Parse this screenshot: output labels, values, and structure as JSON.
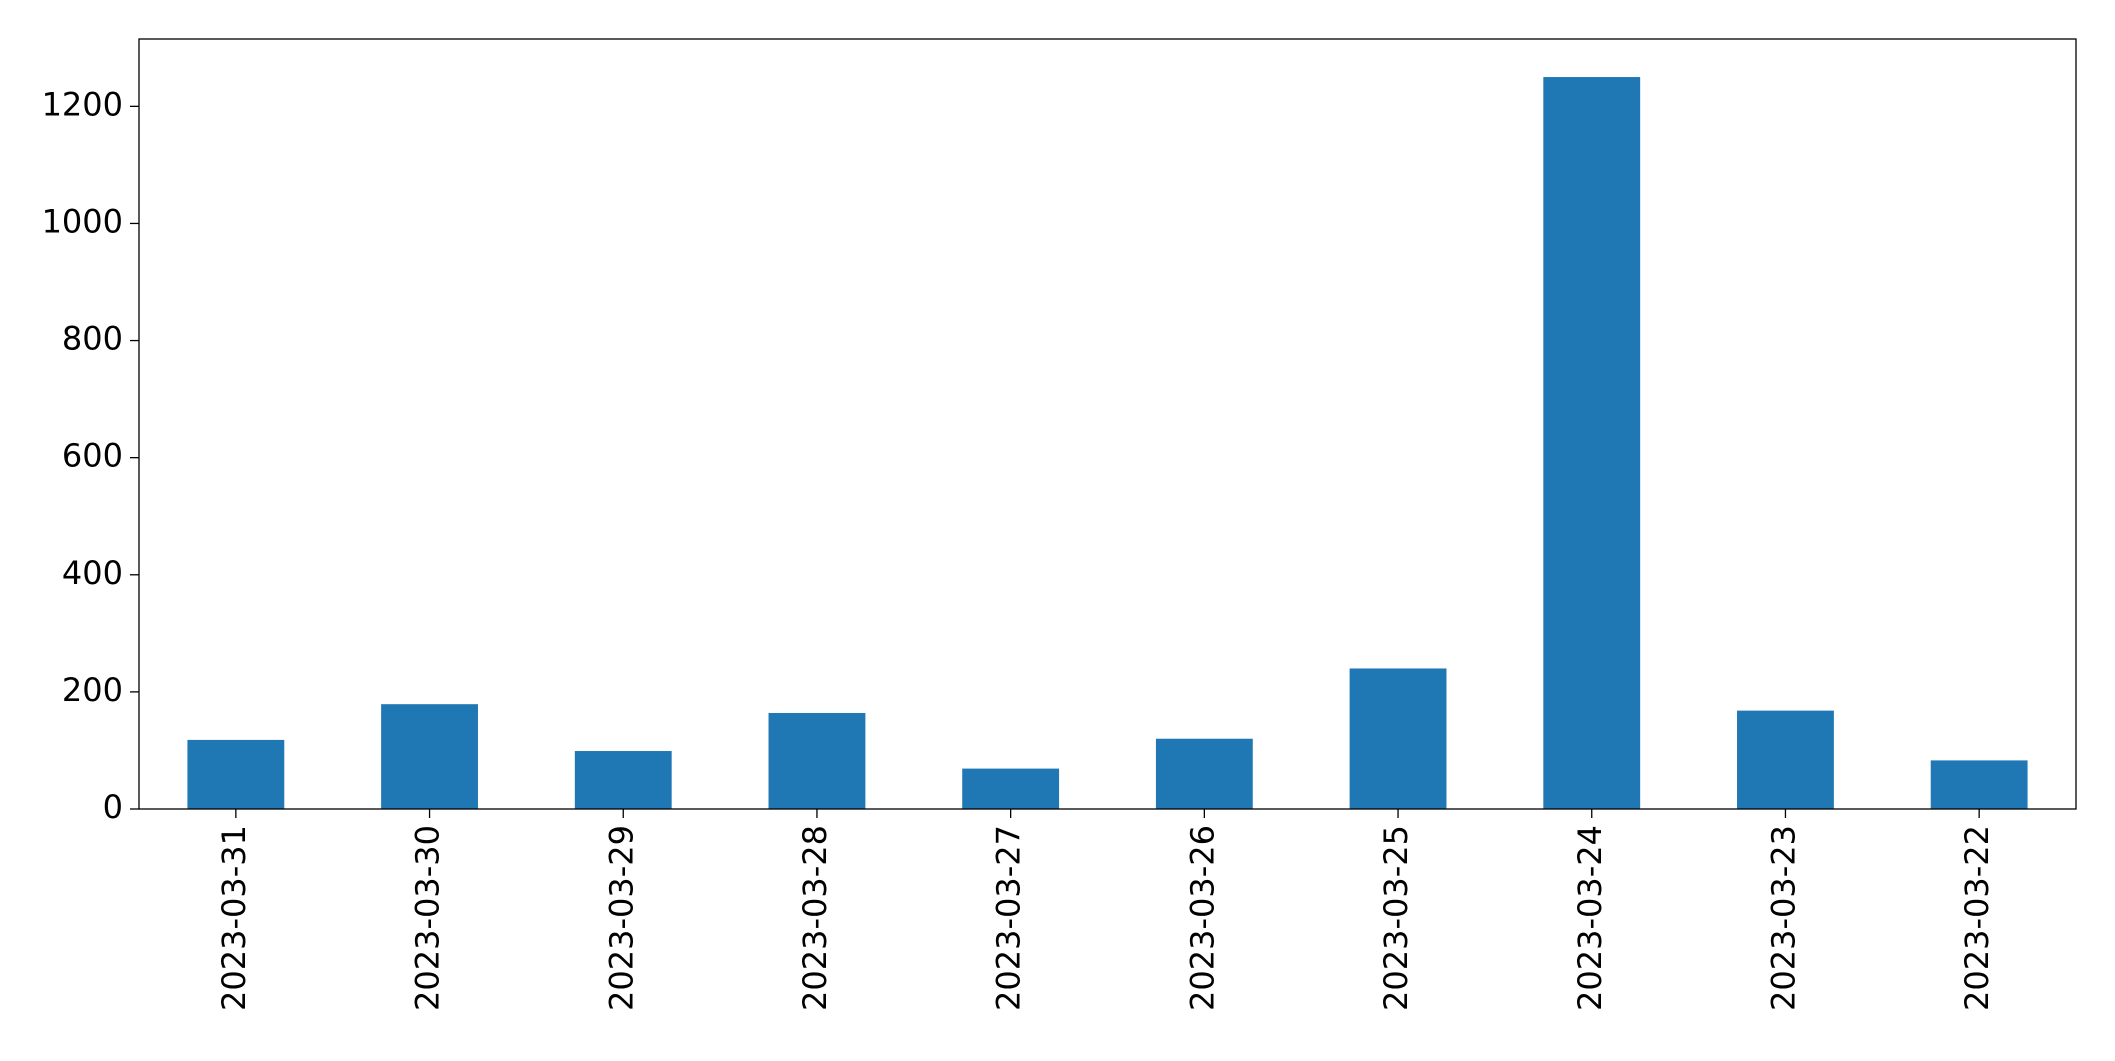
{
  "chart_data": {
    "type": "bar",
    "categories": [
      "2023-03-31",
      "2023-03-30",
      "2023-03-29",
      "2023-03-28",
      "2023-03-27",
      "2023-03-26",
      "2023-03-25",
      "2023-03-24",
      "2023-03-23",
      "2023-03-22"
    ],
    "values": [
      118,
      179,
      99,
      164,
      69,
      120,
      240,
      1250,
      168,
      83
    ],
    "color": "#1f77b4",
    "ylim": [
      0,
      1315
    ],
    "yticks": [
      0,
      200,
      400,
      600,
      800,
      1000,
      1200
    ],
    "grid": false
  }
}
